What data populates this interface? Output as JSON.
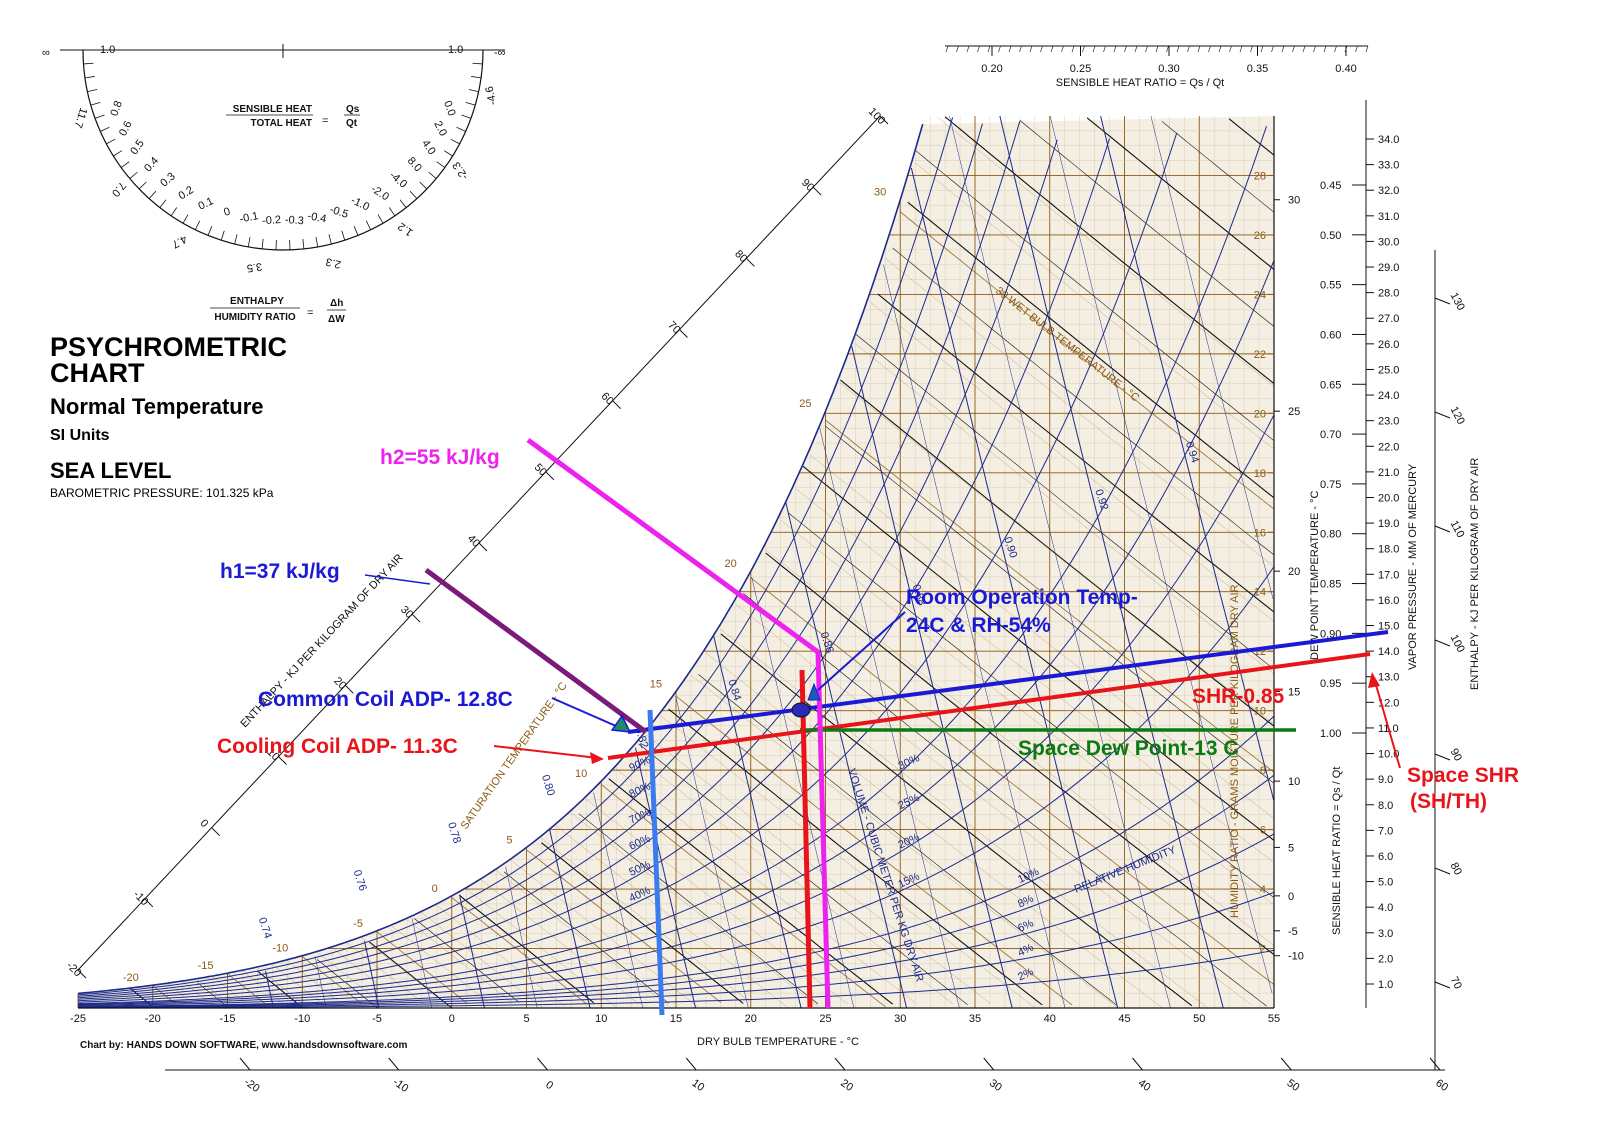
{
  "colors": {
    "enthalpy_lines": "#111111",
    "wet_bulb_lines": "#8a5a14",
    "rh_and_volume_lines": "#1c2a8c",
    "grid_fill": "#f4efe2",
    "blue": "#1a1ad6",
    "red": "#e8141a",
    "magenta": "#ee22ee",
    "purple": "#7a1a7a",
    "green": "#0a7a12",
    "light_blue": "#3a7bf0"
  },
  "header": {
    "title_line1": "PSYCHROMETRIC",
    "title_line2": "CHART",
    "subtitle": "Normal Temperature",
    "units": "SI Units",
    "altitude": "SEA LEVEL",
    "pressure": "BAROMETRIC PRESSURE: 101.325 kPa"
  },
  "protractor": {
    "shr_numerator": "SENSIBLE HEAT",
    "shr_denominator": "TOTAL HEAT",
    "shr_eq": "=",
    "shr_num_sym": "Qs",
    "shr_den_sym": "Qt",
    "enth_numerator": "ENTHALPY",
    "enth_denominator": "HUMIDITY RATIO",
    "enth_eq": "=",
    "enth_num_sym": "Δh",
    "enth_den_sym": "ΔW",
    "top_left_label": "1.0",
    "top_right_label": "1.0",
    "inf_left": "∞",
    "inf_right": "-∞",
    "inner_labels": [
      "0.8",
      "0.6",
      "0.5",
      "0.4",
      "0.3",
      "0.2",
      "0.1",
      "0",
      "-0.1",
      "-0.2",
      "-0.3",
      "-0.4",
      "-0.5",
      "-1.0",
      "-2.0",
      "-4.0",
      "8.0",
      "4.0",
      "2.0",
      "0.0"
    ],
    "outer_labels": [
      "11.7",
      "7.0",
      "4.7",
      "3.5",
      "2.3",
      "1.2",
      "-2.3",
      "-4.6"
    ]
  },
  "chart_data": {
    "type": "psychrometric",
    "x_axis": {
      "label": "DRY BULB TEMPERATURE - °C",
      "ticks": [
        "-25",
        "-20",
        "-15",
        "-10",
        "-5",
        "0",
        "5",
        "10",
        "15",
        "20",
        "25",
        "30",
        "35",
        "40",
        "45",
        "50",
        "55"
      ],
      "range": [
        -25,
        55
      ]
    },
    "y_axis_right": {
      "label": "HUMIDITY RATIO - GRAMS MOISTURE PER KILOGRAM DRY AIR",
      "ticks": [
        "2",
        "4",
        "6",
        "8",
        "10",
        "12",
        "14",
        "16",
        "18",
        "20",
        "22",
        "24",
        "26",
        "28"
      ],
      "range": [
        0,
        30
      ]
    },
    "dew_point_axis": {
      "label": "DEW POINT TEMPERATURE - °C",
      "ticks": [
        "-10",
        "-5",
        "0",
        "5",
        "10",
        "15",
        "20",
        "25",
        "30"
      ]
    },
    "shr_scale": {
      "label": "SENSIBLE HEAT RATIO = Qs / Qt",
      "ticks": [
        "0.45",
        "0.50",
        "0.55",
        "0.60",
        "0.65",
        "0.70",
        "0.75",
        "0.80",
        "0.85",
        "0.90",
        "0.95",
        "1.00"
      ]
    },
    "shr_top_scale": {
      "label": "SENSIBLE HEAT RATIO = Qs / Qt",
      "ticks": [
        "0.20",
        "0.25",
        "0.30",
        "0.35",
        "0.40"
      ]
    },
    "vapor_pressure_axis": {
      "label": "VAPOR PRESSURE - MM OF MERCURY",
      "ticks": [
        "1.0",
        "2.0",
        "3.0",
        "4.0",
        "5.0",
        "6.0",
        "7.0",
        "8.0",
        "9.0",
        "10.0",
        "11.0",
        "12.0",
        "13.0",
        "14.0",
        "15.0",
        "16.0",
        "17.0",
        "18.0",
        "19.0",
        "20.0",
        "21.0",
        "22.0",
        "23.0",
        "24.0",
        "25.0",
        "26.0",
        "27.0",
        "28.0",
        "29.0",
        "30.0",
        "31.0",
        "32.0",
        "33.0",
        "34.0"
      ]
    },
    "enthalpy_right_axis": {
      "label": "ENTHALPY - KJ PER KILOGRAM OF DRY AIR",
      "ticks": [
        "70",
        "80",
        "90",
        "100",
        "110",
        "120",
        "130"
      ]
    },
    "enthalpy_bottom_ticks": [
      "-20",
      "-10",
      "0",
      "10",
      "20",
      "30",
      "40",
      "50",
      "60"
    ],
    "enthalpy_diagonal_axis": {
      "label": "ENTHALPY - KJ PER KILOGRAM OF DRY AIR",
      "ticks": [
        "-20",
        "-10",
        "0",
        "10",
        "20",
        "30",
        "40",
        "50",
        "60",
        "70",
        "80",
        "90",
        "100"
      ]
    },
    "saturation_label": "SATURATION TEMPERATURE - °C",
    "saturation_ticks": [
      "-20",
      "-15",
      "-10",
      "-5",
      "0",
      "5",
      "10",
      "15",
      "20",
      "25",
      "30"
    ],
    "wet_bulb_label": "30 WET BULB TEMPERATURE - °C",
    "volume_label": "VOLUME - CUBIC METER PER KG DRY AIR",
    "volume_ticks": [
      "0.74",
      "0.76",
      "0.78",
      "0.80",
      "0.82",
      "0.84",
      "0.86",
      "0.88",
      "0.90",
      "0.92",
      "0.94"
    ],
    "rh_label": "RELATIVE HUMIDITY",
    "rh_ticks": [
      "2%",
      "4%",
      "6%",
      "8%",
      "10%",
      "15%",
      "20%",
      "25%",
      "30%",
      "40%",
      "50%",
      "60%",
      "70%",
      "80%",
      "90%"
    ],
    "credit": "Chart by: HANDS DOWN SOFTWARE, www.handsdownsoftware.com",
    "annotations": [
      {
        "id": "h2",
        "text": "h2=55 kJ/kg",
        "color": "#ee22ee"
      },
      {
        "id": "h1",
        "text": "h1=37 kJ/kg",
        "color": "#1a1ad6"
      },
      {
        "id": "room",
        "text": "Room Operation Temp-",
        "text2": "24C & RH-54%",
        "color": "#1a1ad6"
      },
      {
        "id": "common_adp",
        "text": "Common Coil ADP- 12.8C",
        "color": "#1a1ad6"
      },
      {
        "id": "cooling_adp",
        "text": "Cooling Coil ADP- 11.3C",
        "color": "#e8141a"
      },
      {
        "id": "shr085",
        "text": "SHR-0.85",
        "color": "#e8141a"
      },
      {
        "id": "space_dew",
        "text": "Space Dew Point-13 C",
        "color": "#0a7a12"
      },
      {
        "id": "space_shr",
        "text": "Space SHR",
        "text2": "(SH/TH)",
        "color": "#e8141a"
      }
    ],
    "process_points": {
      "room_state": {
        "dry_bulb": 24,
        "rh_percent": 54
      },
      "common_adp": {
        "temp": 12.8
      },
      "cooling_adp": {
        "temp": 11.3
      },
      "space_dew_point": {
        "temp": 13
      },
      "shr": 0.85,
      "h1_kj_per_kg": 37,
      "h2_kj_per_kg": 55
    }
  }
}
